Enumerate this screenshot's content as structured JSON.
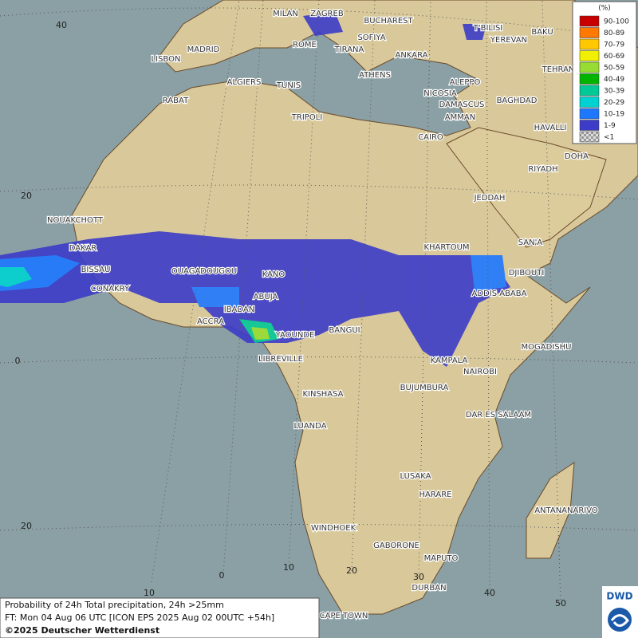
{
  "map": {
    "cities": [
      "MILAN",
      "ZAGREB",
      "BUCHAREST",
      "T'BILISI",
      "BAKU",
      "MADRID",
      "SOFIYA",
      "YEREVAN",
      "ROME",
      "TIRANA",
      "ANKARA",
      "LISBON",
      "TEHRAN",
      "ALGIERS",
      "TUNIS",
      "ATHENS",
      "ALEPPO",
      "RABAT",
      "NICOSIA",
      "BAGHDAD",
      "DAMASCUS",
      "TRIPOLI",
      "AMMAN",
      "HAVALLI",
      "CAIRO",
      "DOHA",
      "RIYADH",
      "JEDDAH",
      "NOUAKCHOTT",
      "SAN'A",
      "KHARTOUM",
      "DAKAR",
      "DJIBOUTI",
      "BISSAU",
      "OUAGADOUGOU",
      "KANO",
      "CONAKRY",
      "ABUJA",
      "ADDIS ABABA",
      "IBADAN",
      "ACCRA",
      "BANGUI",
      "YAOUNDE",
      "MOGADISHU",
      "LIBREVILLE",
      "KAMPALA",
      "NAIROBI",
      "BUJUMBURA",
      "KINSHASA",
      "DAR ES SALAAM",
      "LUANDA",
      "LUSAKA",
      "HARARE",
      "ANTANANARIVO",
      "WINDHOEK",
      "GABORONE",
      "MAPUTO",
      "DURBAN",
      "CAPE TOWN"
    ],
    "lat_labels": [
      "40",
      "20",
      "0",
      "20"
    ],
    "lon_labels": [
      "10",
      "0",
      "10",
      "20",
      "30",
      "40",
      "50"
    ]
  },
  "legend": {
    "title": "(%)",
    "items": [
      {
        "label": "90-100",
        "color": "#c80000"
      },
      {
        "label": "80-89",
        "color": "#ff7800"
      },
      {
        "label": "70-79",
        "color": "#ffc800"
      },
      {
        "label": "60-69",
        "color": "#f0f000"
      },
      {
        "label": "50-59",
        "color": "#96dc32"
      },
      {
        "label": "40-49",
        "color": "#00b400"
      },
      {
        "label": "30-39",
        "color": "#00c896"
      },
      {
        "label": "20-29",
        "color": "#00d2d2"
      },
      {
        "label": "10-19",
        "color": "#1e78ff"
      },
      {
        "label": "1-9",
        "color": "#3c3cc8"
      },
      {
        "label": "<1",
        "color": "#b4b4b4"
      }
    ]
  },
  "caption": {
    "line1": "Probability of 24h Total precipitation, 24h >25mm",
    "line2": "FT: Mon 04 Aug 06 UTC [ICON EPS 2025 Aug 02 00UTC +54h]",
    "line3": "©2025 Deutscher Wetterdienst"
  },
  "logo": "DWD"
}
